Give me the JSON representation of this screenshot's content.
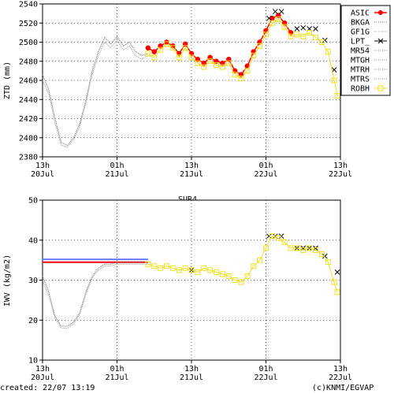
{
  "footer": {
    "created": "created: 22/07 13:19",
    "credit": "(c)KNMI/EGVAP"
  },
  "chart_data": [
    {
      "type": "line",
      "title": "",
      "xlabel": "",
      "ylabel": "ZTD (mm)",
      "ylim": [
        2380,
        2540
      ],
      "yticks": [
        2380,
        2400,
        2420,
        2440,
        2460,
        2480,
        2500,
        2520,
        2540
      ],
      "xlim": [
        0,
        48
      ],
      "xticks": [
        {
          "x": 0,
          "top": "13h",
          "bottom": "20Jul"
        },
        {
          "x": 12,
          "top": "01h",
          "bottom": "21Jul"
        },
        {
          "x": 24,
          "top": "13h",
          "bottom": "21Jul"
        },
        {
          "x": 36,
          "top": "01h",
          "bottom": "22Jul"
        },
        {
          "x": 48,
          "top": "13h",
          "bottom": "22Jul"
        }
      ],
      "grid": true,
      "legend": "right",
      "series": [
        {
          "name": "ASIC",
          "color": "#ff0000",
          "style": "dots",
          "x": [
            17.0,
            18.0,
            19.0,
            20.0,
            21.0,
            22.0,
            23.0,
            24.0,
            25.0,
            26.0,
            27.0,
            28.0,
            29.0,
            30.0,
            31.0,
            32.0,
            33.0,
            34.0,
            35.0,
            36.0,
            37.0,
            38.0,
            39.0,
            40.0
          ],
          "y": [
            2494,
            2490,
            2496,
            2500,
            2496,
            2488,
            2498,
            2488,
            2482,
            2478,
            2484,
            2480,
            2478,
            2482,
            2470,
            2466,
            2475,
            2490,
            2500,
            2512,
            2525,
            2528,
            2520,
            2510
          ]
        },
        {
          "name": "BKGA",
          "color": "#666666",
          "style": "dotted",
          "x": [
            0,
            1,
            2,
            3,
            4,
            5,
            6,
            7,
            8,
            9,
            10,
            11,
            12,
            13,
            14,
            15,
            16,
            17
          ],
          "y": [
            2466,
            2450,
            2420,
            2395,
            2392,
            2400,
            2415,
            2440,
            2470,
            2490,
            2505,
            2498,
            2506,
            2496,
            2500,
            2490,
            2486,
            2488
          ]
        },
        {
          "name": "GF1G",
          "color": "#999999",
          "style": "dotted",
          "x": [
            0,
            1,
            2,
            3,
            4,
            5,
            6,
            7,
            8,
            9,
            10,
            11,
            12,
            13,
            14,
            15,
            16,
            17
          ],
          "y": [
            2460,
            2446,
            2415,
            2392,
            2390,
            2398,
            2412,
            2436,
            2466,
            2486,
            2500,
            2494,
            2502,
            2492,
            2496,
            2486,
            2482,
            2486
          ]
        },
        {
          "name": "LPT_",
          "color": "#000000",
          "style": "crosses",
          "x": [
            36.5,
            37.5,
            38.5,
            41.0,
            42.0,
            43.0,
            44.0,
            45.5,
            47.0
          ],
          "y": [
            2525,
            2532,
            2532,
            2514,
            2515,
            2514,
            2514,
            2502,
            2471
          ]
        },
        {
          "name": "MR54",
          "color": "#888888",
          "style": "dotted",
          "x": [],
          "y": []
        },
        {
          "name": "MTGH",
          "color": "#888888",
          "style": "dotted",
          "x": [],
          "y": []
        },
        {
          "name": "MTRH",
          "color": "#888888",
          "style": "dotted",
          "x": [],
          "y": []
        },
        {
          "name": "MTRS",
          "color": "#888888",
          "style": "dotted",
          "x": [],
          "y": []
        },
        {
          "name": "ROBH",
          "color": "#f0e020",
          "style": "squares",
          "x": [
            17.0,
            18.0,
            19.0,
            20.0,
            21.0,
            22.0,
            23.0,
            24.0,
            25.0,
            26.0,
            27.0,
            28.0,
            29.0,
            30.0,
            31.0,
            32.0,
            33.0,
            34.0,
            35.0,
            36.0,
            37.0,
            38.0,
            39.0,
            40.0,
            41.0,
            42.0,
            43.0,
            44.0,
            45.0,
            46.0,
            47.0,
            47.5
          ],
          "y": [
            2488,
            2484,
            2492,
            2498,
            2494,
            2484,
            2494,
            2484,
            2478,
            2474,
            2480,
            2476,
            2474,
            2478,
            2466,
            2462,
            2470,
            2486,
            2496,
            2508,
            2520,
            2524,
            2516,
            2506,
            2508,
            2506,
            2510,
            2505,
            2500,
            2490,
            2460,
            2444
          ]
        }
      ]
    },
    {
      "type": "line",
      "title": "SUR4",
      "xlabel": "",
      "ylabel": "IWV (kg/m2)",
      "ylim": [
        10,
        50
      ],
      "yticks": [
        10,
        20,
        30,
        40,
        50
      ],
      "xlim": [
        0,
        48
      ],
      "xticks": [
        {
          "x": 0,
          "top": "13h",
          "bottom": "20Jul"
        },
        {
          "x": 12,
          "top": "01h",
          "bottom": "21Jul"
        },
        {
          "x": 24,
          "top": "13h",
          "bottom": "21Jul"
        },
        {
          "x": 36,
          "top": "01h",
          "bottom": "22Jul"
        },
        {
          "x": 48,
          "top": "13h",
          "bottom": "22Jul"
        }
      ],
      "grid": true,
      "series": [
        {
          "name": "ASIC",
          "color": "#ff0000",
          "style": "line",
          "x": [
            0,
            17
          ],
          "y": [
            34.5,
            34.5
          ]
        },
        {
          "name": "BKGA",
          "color": "#666666",
          "style": "dotted",
          "x": [
            0,
            1,
            2,
            3,
            4,
            5,
            6,
            7,
            8,
            9,
            10,
            11,
            12,
            13,
            14,
            15,
            16,
            17
          ],
          "y": [
            31,
            27,
            21,
            18.5,
            18.5,
            19.5,
            22,
            27,
            31,
            33,
            34,
            34,
            34.5,
            34.5,
            34.5,
            34.5,
            34.5,
            34.5
          ]
        },
        {
          "name": "GF1G",
          "color": "#999999",
          "style": "dotted",
          "x": [
            0,
            1,
            2,
            3,
            4,
            5,
            6,
            7,
            8,
            9,
            10,
            11,
            12,
            13,
            14,
            15,
            16,
            17
          ],
          "y": [
            30,
            26,
            20.5,
            18,
            18,
            19,
            21.5,
            26.5,
            30.5,
            32.5,
            33.5,
            33.5,
            34,
            34,
            34,
            34,
            34,
            34
          ]
        },
        {
          "name": "LPT_",
          "color": "#000000",
          "style": "crosses",
          "x": [
            24.0,
            36.5,
            37.5,
            38.5,
            41.0,
            42.0,
            43.0,
            44.0,
            45.5,
            47.5
          ],
          "y": [
            32.5,
            41,
            41,
            41,
            38,
            38,
            38,
            38,
            36,
            32
          ]
        },
        {
          "name": "MTRS",
          "color": "#6a7cff",
          "style": "line",
          "x": [
            0,
            17
          ],
          "y": [
            35.2,
            35.2
          ]
        },
        {
          "name": "ROBH",
          "color": "#f0e020",
          "style": "squares",
          "x": [
            17.0,
            18.0,
            19.0,
            20.0,
            21.0,
            22.0,
            23.0,
            24.0,
            25.0,
            26.0,
            27.0,
            28.0,
            29.0,
            30.0,
            31.0,
            32.0,
            33.0,
            34.0,
            35.0,
            36.0,
            37.0,
            38.0,
            39.0,
            40.0,
            41.0,
            42.0,
            43.0,
            44.0,
            45.0,
            46.0,
            47.0,
            47.5
          ],
          "y": [
            34,
            33.5,
            33,
            33.5,
            33,
            32.5,
            33,
            32.5,
            32,
            33,
            32.5,
            32,
            31.5,
            31,
            30,
            29.5,
            31,
            33.5,
            35,
            38,
            41,
            40.5,
            39.5,
            38,
            38,
            37.5,
            38,
            37.5,
            36.5,
            34.5,
            29.5,
            27
          ]
        }
      ]
    }
  ]
}
